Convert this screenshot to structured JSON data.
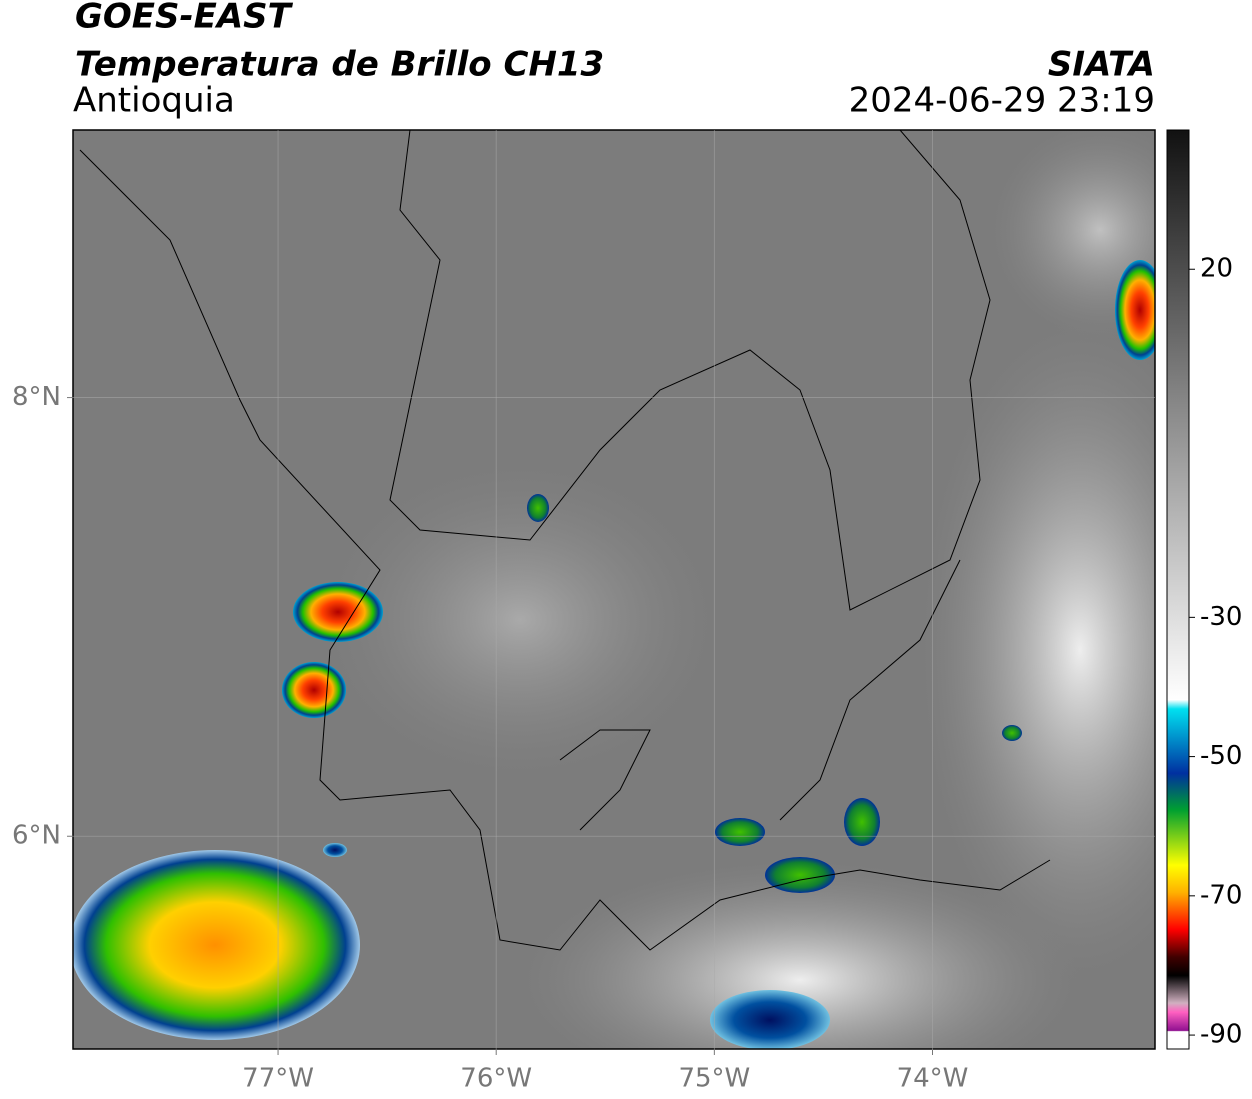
{
  "header": {
    "satellite": "GOES-EAST",
    "product": "Temperatura de Brillo CH13",
    "region": "Antioquia",
    "source": "SIATA",
    "datetime": "2024-06-29 23:19"
  },
  "map": {
    "xlim": [
      -77.94,
      -72.98
    ],
    "ylim": [
      5.03,
      9.22
    ],
    "xticks": [
      {
        "value": -77,
        "label": "77°W"
      },
      {
        "value": -76,
        "label": "76°W"
      },
      {
        "value": -75,
        "label": "75°W"
      },
      {
        "value": -74,
        "label": "74°W"
      }
    ],
    "yticks": [
      {
        "value": 6,
        "label": "6°N"
      },
      {
        "value": 8,
        "label": "8°N"
      }
    ],
    "grid": true
  },
  "colorbar": {
    "lim": [
      -92,
      40
    ],
    "ticks": [
      20,
      -30,
      -50,
      -70,
      -90
    ]
  }
}
